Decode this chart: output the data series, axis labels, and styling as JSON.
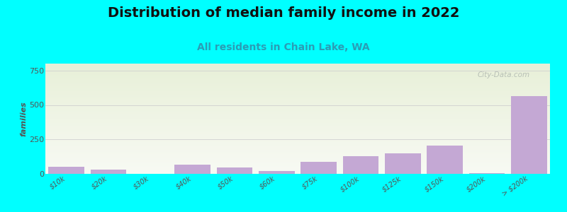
{
  "title": "Distribution of median family income in 2022",
  "subtitle": "All residents in Chain Lake, WA",
  "ylabel": "families",
  "categories": [
    "$10k",
    "$20k",
    "$30k",
    "$40k",
    "$50k",
    "$60k",
    "$75k",
    "$100k",
    "$125k",
    "$150k",
    "$200k",
    "> $200k"
  ],
  "values": [
    50,
    30,
    0,
    65,
    45,
    18,
    85,
    130,
    150,
    205,
    5,
    565
  ],
  "bar_color": "#c4a8d4",
  "background_color": "#00ffff",
  "plot_bg_top_color": "#e8f0d8",
  "plot_bg_bottom_color": "#f8faf4",
  "ylim": [
    0,
    800
  ],
  "yticks": [
    0,
    250,
    500,
    750
  ],
  "title_fontsize": 14,
  "subtitle_fontsize": 10,
  "ylabel_fontsize": 8,
  "watermark_text": "City-Data.com",
  "title_color": "#111111",
  "subtitle_color": "#2a9db5",
  "tick_color": "#555555",
  "gridline_color": "#d0d0d0",
  "bar_width": 0.85
}
